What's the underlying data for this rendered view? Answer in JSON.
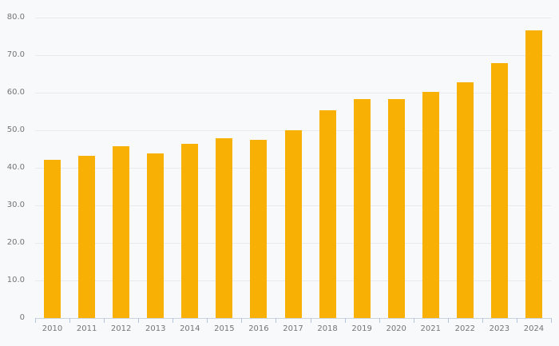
{
  "chart_data": {
    "type": "bar",
    "categories": [
      "2010",
      "2011",
      "2012",
      "2013",
      "2014",
      "2015",
      "2016",
      "2017",
      "2018",
      "2019",
      "2020",
      "2021",
      "2022",
      "2023",
      "2024"
    ],
    "values": [
      42.2,
      43.2,
      45.8,
      43.9,
      46.4,
      47.9,
      47.5,
      50.0,
      55.3,
      58.3,
      58.3,
      60.2,
      62.7,
      67.8,
      76.7
    ],
    "title": "",
    "xlabel": "",
    "ylabel": "",
    "ylim": [
      0,
      80
    ],
    "ytick_step": 10,
    "ytick_labels": [
      "0",
      "10.0",
      "20.0",
      "30.0",
      "40.0",
      "50.0",
      "60.0",
      "70.0",
      "80.0"
    ],
    "grid": true,
    "legend": false,
    "colors": {
      "bar": "#F9B005",
      "background": "#F8F9FA",
      "gridline": "#E9EAEB",
      "axis_line": "#CBD3DF",
      "tick": "#B6C4DE",
      "label": "#747474"
    }
  }
}
